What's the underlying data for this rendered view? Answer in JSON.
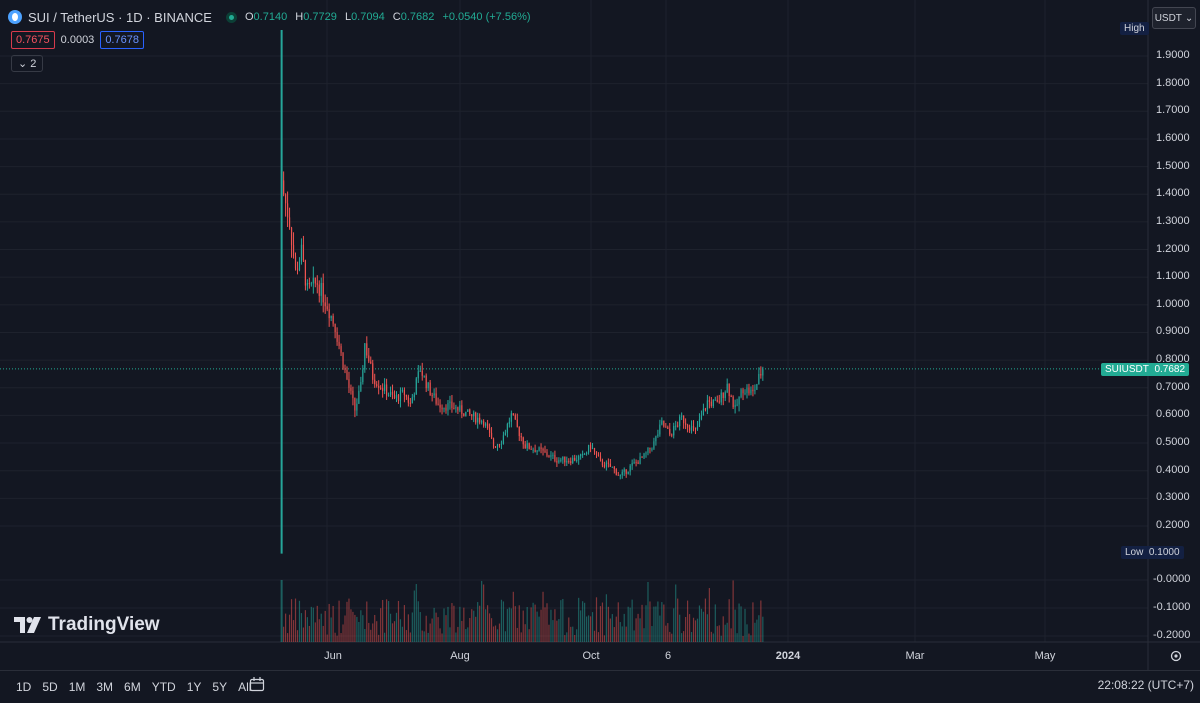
{
  "header": {
    "symbol_title": "SUI / TetherUS · 1D · BINANCE",
    "ohlc": [
      {
        "k": "O",
        "v": "0.7140"
      },
      {
        "k": "H",
        "v": "0.7729"
      },
      {
        "k": "L",
        "v": "0.7094"
      },
      {
        "k": "C",
        "v": "0.7682"
      },
      {
        "k": "",
        "v": "+0.0540 (+7.56%)"
      }
    ],
    "sell_price": "0.7675",
    "spread": "0.0003",
    "buy_price": "0.7678",
    "indicator_count": "2"
  },
  "price_axis": {
    "currency": "USDT",
    "high_label": "High",
    "low_label": "Low",
    "low_value": "0.1000",
    "symbol_tag": "SUIUSDT",
    "last_price": "0.7682"
  },
  "brand": "TradingView",
  "timeframes": [
    "1D",
    "5D",
    "1M",
    "3M",
    "6M",
    "YTD",
    "1Y",
    "5Y",
    "All"
  ],
  "clock": "22:08:22 (UTC+7)",
  "colors": {
    "up": "#26a69a",
    "down": "#ef5350",
    "bg": "#131722",
    "grid": "#1e222d"
  },
  "chart_data": {
    "type": "candlestick",
    "title": "SUI / TetherUS · 1D · BINANCE",
    "y_ticks": [
      "1.9000",
      "1.8000",
      "1.7000",
      "1.6000",
      "1.5000",
      "1.4000",
      "1.3000",
      "1.2000",
      "1.1000",
      "1.0000",
      "0.9000",
      "0.8000",
      "0.7000",
      "0.6000",
      "0.5000",
      "0.4000",
      "0.3000",
      "0.2000"
    ],
    "volume_ticks": [
      "-0.0000",
      "-0.1000",
      "-0.2000"
    ],
    "x_ticks": [
      "Jun",
      "Aug",
      "Oct",
      "6",
      "2024",
      "Mar",
      "May"
    ],
    "ylim": [
      0.1,
      2.0
    ],
    "grid": true,
    "close_series": {
      "points": [
        [
          "2023-05-03",
          1.4
        ],
        [
          "2023-05-06",
          1.3
        ],
        [
          "2023-05-09",
          1.12
        ],
        [
          "2023-05-12",
          1.19
        ],
        [
          "2023-05-15",
          1.05
        ],
        [
          "2023-05-20",
          1.08
        ],
        [
          "2023-05-25",
          1.0
        ],
        [
          "2023-05-29",
          0.92
        ],
        [
          "2023-06-01",
          0.82
        ],
        [
          "2023-06-05",
          0.7
        ],
        [
          "2023-06-08",
          0.62
        ],
        [
          "2023-06-11",
          0.7
        ],
        [
          "2023-06-13",
          0.86
        ],
        [
          "2023-06-17",
          0.74
        ],
        [
          "2023-06-22",
          0.7
        ],
        [
          "2023-06-28",
          0.66
        ],
        [
          "2023-07-03",
          0.68
        ],
        [
          "2023-07-06",
          0.64
        ],
        [
          "2023-07-11",
          0.77
        ],
        [
          "2023-07-15",
          0.7
        ],
        [
          "2023-07-20",
          0.64
        ],
        [
          "2023-07-28",
          0.63
        ],
        [
          "2023-08-05",
          0.6
        ],
        [
          "2023-08-12",
          0.58
        ],
        [
          "2023-08-17",
          0.49
        ],
        [
          "2023-08-21",
          0.51
        ],
        [
          "2023-08-26",
          0.6
        ],
        [
          "2023-09-02",
          0.49
        ],
        [
          "2023-09-10",
          0.47
        ],
        [
          "2023-09-18",
          0.44
        ],
        [
          "2023-09-25",
          0.44
        ],
        [
          "2023-10-01",
          0.45
        ],
        [
          "2023-10-05",
          0.49
        ],
        [
          "2023-10-10",
          0.43
        ],
        [
          "2023-10-16",
          0.41
        ],
        [
          "2023-10-20",
          0.38
        ],
        [
          "2023-10-26",
          0.42
        ],
        [
          "2023-11-01",
          0.45
        ],
        [
          "2023-11-06",
          0.5
        ],
        [
          "2023-11-10",
          0.57
        ],
        [
          "2023-11-14",
          0.53
        ],
        [
          "2023-11-20",
          0.59
        ],
        [
          "2023-11-27",
          0.54
        ],
        [
          "2023-12-03",
          0.65
        ],
        [
          "2023-12-08",
          0.64
        ],
        [
          "2023-12-13",
          0.71
        ],
        [
          "2023-12-17",
          0.62
        ],
        [
          "2023-12-21",
          0.7
        ],
        [
          "2023-12-26",
          0.68
        ],
        [
          "2023-12-31",
          0.77
        ]
      ]
    }
  }
}
